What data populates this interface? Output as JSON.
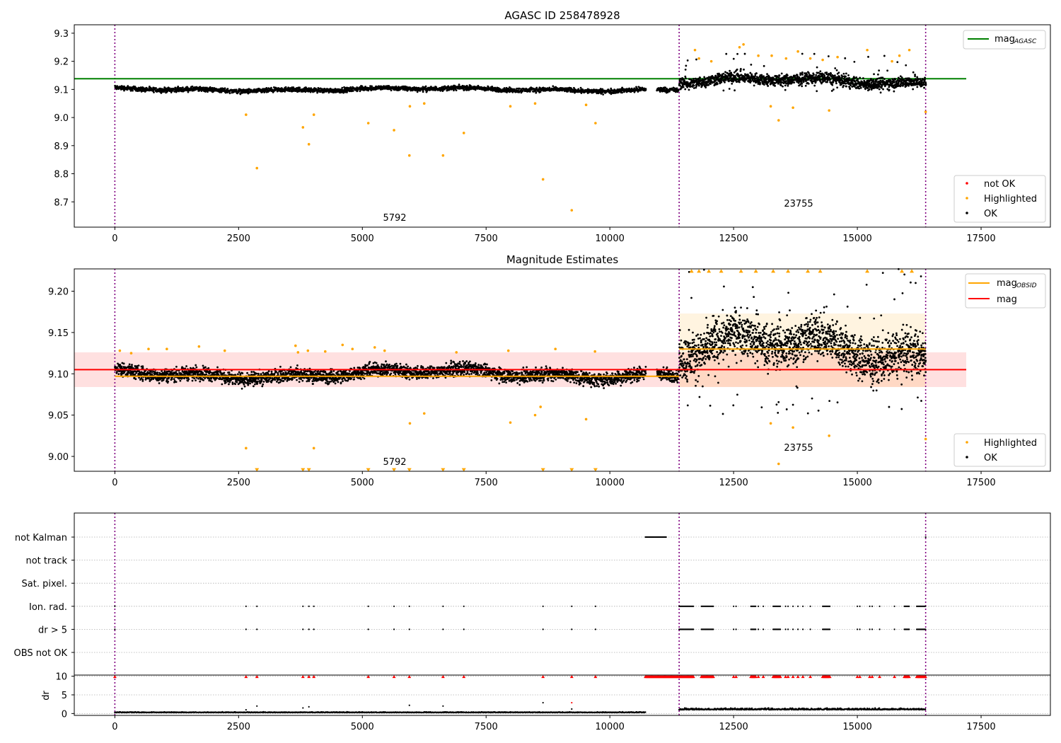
{
  "chart_data": [
    {
      "type": "scatter",
      "title": "AGASC ID 258478928",
      "xlabel": "",
      "ylabel": "",
      "xlim": [
        -820,
        18900
      ],
      "ylim": [
        8.61,
        9.33
      ],
      "xticks": [
        0,
        2500,
        5000,
        7500,
        10000,
        12500,
        15000,
        17500
      ],
      "xtick_labels": [
        "0",
        "2500",
        "5000",
        "7500",
        "10000",
        "12500",
        "15000",
        "17500"
      ],
      "yticks": [
        8.7,
        8.8,
        8.9,
        9.0,
        9.1,
        9.2,
        9.3
      ],
      "ytick_labels": [
        "8.7",
        "8.8",
        "8.9",
        "9.0",
        "9.1",
        "9.2",
        "9.3"
      ],
      "grid": false,
      "legend_position": "upper-right and lower-right",
      "vlines": [
        0,
        11400,
        16380
      ],
      "obsid_labels": [
        {
          "text": "5792",
          "x": 5700,
          "y": 8.655
        },
        {
          "text": "23755",
          "x": 14300,
          "y": 8.685
        }
      ],
      "hlines": [
        {
          "name": "mag_AGASC",
          "legend_main": "mag",
          "legend_sub": "AGASC",
          "y": 9.138,
          "x": [
            -820,
            17200
          ],
          "color": "#008000"
        }
      ],
      "bands": [
        {
          "name": "obs-1 OK",
          "x_start": 0,
          "x_end": 10720,
          "center": 9.1,
          "spread": 0.012,
          "color": "#000000"
        },
        {
          "name": "obs-1 OK gap fill",
          "x_start": 10950,
          "x_end": 11390,
          "center": 9.1,
          "spread": 0.012,
          "color": "#000000"
        },
        {
          "name": "obs-2 OK",
          "x_start": 11400,
          "x_end": 16380,
          "center": 9.128,
          "spread": 0.03,
          "color": "#000000"
        }
      ],
      "series": [
        {
          "name": "not OK",
          "color": "#ff0000",
          "points": []
        },
        {
          "name": "Highlighted",
          "color": "#ffa500",
          "points": [
            [
              2650,
              9.01
            ],
            [
              2870,
              8.82
            ],
            [
              3800,
              8.965
            ],
            [
              3920,
              8.905
            ],
            [
              4020,
              9.01
            ],
            [
              5120,
              8.98
            ],
            [
              5640,
              8.955
            ],
            [
              5950,
              8.865
            ],
            [
              5960,
              9.04
            ],
            [
              6250,
              9.05
            ],
            [
              6630,
              8.865
            ],
            [
              7050,
              8.945
            ],
            [
              7990,
              9.04
            ],
            [
              8490,
              9.05
            ],
            [
              8650,
              8.78
            ],
            [
              9230,
              8.67
            ],
            [
              9520,
              9.045
            ],
            [
              9710,
              8.98
            ],
            [
              13250,
              9.04
            ],
            [
              13410,
              8.99
            ],
            [
              13700,
              9.035
            ],
            [
              14430,
              9.025
            ],
            [
              16380,
              9.02
            ],
            [
              11720,
              9.24
            ],
            [
              11800,
              9.21
            ],
            [
              12050,
              9.2
            ],
            [
              12620,
              9.25
            ],
            [
              12700,
              9.26
            ],
            [
              13000,
              9.22
            ],
            [
              13270,
              9.22
            ],
            [
              13560,
              9.21
            ],
            [
              13800,
              9.235
            ],
            [
              14050,
              9.21
            ],
            [
              14300,
              9.205
            ],
            [
              14600,
              9.215
            ],
            [
              15200,
              9.24
            ],
            [
              15700,
              9.2
            ],
            [
              15850,
              9.22
            ],
            [
              16050,
              9.24
            ]
          ]
        },
        {
          "name": "OK",
          "color": "#000000",
          "points": []
        }
      ],
      "legends": [
        {
          "position": "upper-right",
          "entries": [
            {
              "label_main": "mag",
              "label_sub": "AGASC",
              "kind": "line",
              "color": "#008000"
            }
          ]
        },
        {
          "position": "lower-right",
          "entries": [
            {
              "label": "not OK",
              "kind": "marker",
              "color": "#ff0000"
            },
            {
              "label": "Highlighted",
              "kind": "marker",
              "color": "#ffa500"
            },
            {
              "label": "OK",
              "kind": "marker",
              "color": "#000000"
            }
          ]
        }
      ]
    },
    {
      "type": "scatter",
      "title": "Magnitude Estimates",
      "xlabel": "",
      "ylabel": "",
      "xlim": [
        -820,
        18900
      ],
      "ylim": [
        8.982,
        9.227
      ],
      "xticks": [
        0,
        2500,
        5000,
        7500,
        10000,
        12500,
        15000,
        17500
      ],
      "xtick_labels": [
        "0",
        "2500",
        "5000",
        "7500",
        "10000",
        "12500",
        "15000",
        "17500"
      ],
      "yticks": [
        9.0,
        9.05,
        9.1,
        9.15,
        9.2
      ],
      "ytick_labels": [
        "9.00",
        "9.05",
        "9.10",
        "9.15",
        "9.20"
      ],
      "grid": false,
      "vlines": [
        0,
        11400,
        16380
      ],
      "obsid_labels": [
        {
          "text": "5792",
          "x": 5700,
          "y": 8.9935
        },
        {
          "text": "23755",
          "x": 14300,
          "y": 9.0105
        }
      ],
      "shaded_regions": [
        {
          "name": "mag band",
          "x": [
            -820,
            17200
          ],
          "y": [
            9.084,
            9.126
          ],
          "color": "#ff0000",
          "opacity": 0.12
        },
        {
          "name": "obs-2 band",
          "x": [
            11400,
            16380
          ],
          "y": [
            9.084,
            9.173
          ],
          "color": "#ffa500",
          "opacity": 0.12
        }
      ],
      "hlines": [
        {
          "name": "mag_OBSID obs-1",
          "y": 9.097,
          "x": [
            0,
            11400
          ],
          "color": "#ffa500"
        },
        {
          "name": "mag_OBSID obs-2",
          "y": 9.13,
          "x": [
            11400,
            16380
          ],
          "color": "#ffa500"
        },
        {
          "name": "mag",
          "y": 9.105,
          "x": [
            -820,
            17200
          ],
          "color": "#ff0000"
        }
      ],
      "bands": [
        {
          "name": "obs-1 OK",
          "x_start": 0,
          "x_end": 10720,
          "center": 9.1,
          "spread": 0.012,
          "color": "#000000"
        },
        {
          "name": "obs-1 OK gap fill",
          "x_start": 10950,
          "x_end": 11390,
          "center": 9.1,
          "spread": 0.012,
          "color": "#000000"
        },
        {
          "name": "obs-2 OK",
          "x_start": 11400,
          "x_end": 16380,
          "center": 9.128,
          "spread": 0.04,
          "color": "#000000"
        }
      ],
      "series": [
        {
          "name": "Highlighted",
          "color": "#ffa500",
          "points": [
            [
              2650,
              9.01
            ],
            [
              4020,
              9.01
            ],
            [
              5960,
              9.04
            ],
            [
              6250,
              9.052
            ],
            [
              7990,
              9.041
            ],
            [
              8490,
              9.05
            ],
            [
              8600,
              9.06
            ],
            [
              9520,
              9.045
            ],
            [
              13250,
              9.04
            ],
            [
              13410,
              8.991
            ],
            [
              13700,
              9.035
            ],
            [
              14430,
              9.025
            ],
            [
              16380,
              9.021
            ],
            [
              100,
              9.128
            ],
            [
              330,
              9.125
            ],
            [
              680,
              9.13
            ],
            [
              1050,
              9.13
            ],
            [
              1700,
              9.133
            ],
            [
              2220,
              9.128
            ],
            [
              3650,
              9.134
            ],
            [
              3700,
              9.126
            ],
            [
              3900,
              9.128
            ],
            [
              4250,
              9.127
            ],
            [
              4600,
              9.135
            ],
            [
              4800,
              9.13
            ],
            [
              5250,
              9.132
            ],
            [
              5450,
              9.128
            ],
            [
              6900,
              9.126
            ],
            [
              7950,
              9.128
            ],
            [
              8900,
              9.13
            ],
            [
              9700,
              9.127
            ]
          ]
        },
        {
          "name": "Highlighted (clipped below)",
          "color": "#ffa500",
          "points": [
            [
              2870,
              8.984
            ],
            [
              3800,
              8.984
            ],
            [
              3920,
              8.984
            ],
            [
              5120,
              8.984
            ],
            [
              5640,
              8.984
            ],
            [
              5950,
              8.984
            ],
            [
              6630,
              8.984
            ],
            [
              7050,
              8.984
            ],
            [
              8650,
              8.984
            ],
            [
              9230,
              8.984
            ],
            [
              9710,
              8.984
            ]
          ]
        },
        {
          "name": "Highlighted (clipped above)",
          "color": "#ffa500",
          "points": [
            [
              11650,
              9.225
            ],
            [
              11800,
              9.225
            ],
            [
              12000,
              9.225
            ],
            [
              12250,
              9.225
            ],
            [
              12650,
              9.225
            ],
            [
              12950,
              9.225
            ],
            [
              13300,
              9.225
            ],
            [
              13600,
              9.225
            ],
            [
              14000,
              9.225
            ],
            [
              14250,
              9.225
            ],
            [
              15200,
              9.225
            ],
            [
              15900,
              9.225
            ],
            [
              16100,
              9.225
            ]
          ]
        },
        {
          "name": "OK",
          "color": "#000000",
          "points": []
        }
      ],
      "legends": [
        {
          "position": "upper-right",
          "entries": [
            {
              "label_main": "mag",
              "label_sub": "OBSID",
              "kind": "line",
              "color": "#ffa500"
            },
            {
              "label": "mag",
              "kind": "line",
              "color": "#ff0000"
            }
          ]
        },
        {
          "position": "lower-right",
          "entries": [
            {
              "label": "Highlighted",
              "kind": "marker",
              "color": "#ffa500"
            },
            {
              "label": "OK",
              "kind": "marker",
              "color": "#000000"
            }
          ]
        }
      ]
    },
    {
      "type": "scatter",
      "title": "",
      "xlabel": "",
      "ylabel": "",
      "xlim": [
        -820,
        18900
      ],
      "categories": [
        "not Kalman",
        "not track",
        "Sat. pixel.",
        "Ion. rad.",
        "dr > 5",
        "OBS not OK"
      ],
      "grid": "horizontal dotted",
      "vlines": [
        0,
        11400,
        16380
      ],
      "flags": [
        {
          "category": "not Kalman",
          "ranges": [
            [
              10720,
              11150
            ]
          ],
          "points": [
            16380
          ]
        },
        {
          "category": "not track",
          "ranges": [],
          "points": []
        },
        {
          "category": "Sat. pixel.",
          "ranges": [],
          "points": []
        },
        {
          "category": "Ion. rad.",
          "ranges": [
            [
              11400,
              11700
            ],
            [
              11850,
              12100
            ],
            [
              12850,
              12950
            ],
            [
              13300,
              13450
            ],
            [
              14300,
              14450
            ],
            [
              15950,
              16050
            ],
            [
              16200,
              16380
            ]
          ],
          "points": [
            0,
            2650,
            2870,
            3800,
            3920,
            4020,
            5120,
            5640,
            5950,
            6630,
            7050,
            8650,
            9230,
            9710,
            12500,
            12550,
            13000,
            13100,
            13550,
            13600,
            13700,
            13800,
            13900,
            14050,
            15000,
            15050,
            15250,
            15300,
            15450,
            15750
          ]
        },
        {
          "category": "dr > 5",
          "ranges": [
            [
              11400,
              11700
            ],
            [
              11850,
              12100
            ],
            [
              12850,
              12950
            ],
            [
              13300,
              13450
            ],
            [
              14300,
              14450
            ],
            [
              15950,
              16050
            ],
            [
              16200,
              16380
            ]
          ],
          "points": [
            0,
            2650,
            2870,
            3800,
            3920,
            4020,
            5120,
            5640,
            5950,
            6630,
            7050,
            8650,
            9230,
            9710,
            12500,
            12550,
            13000,
            13100,
            13550,
            13600,
            13700,
            13800,
            13900,
            14050,
            15000,
            15050,
            15250,
            15300,
            15450,
            15750
          ]
        },
        {
          "category": "OBS not OK",
          "ranges": [],
          "points": []
        }
      ]
    },
    {
      "type": "scatter",
      "title": "",
      "xlabel": "",
      "ylabel": "dr",
      "xlim": [
        -820,
        18900
      ],
      "ylim": [
        -0.5,
        10.3
      ],
      "yticks": [
        0,
        5,
        10
      ],
      "ytick_labels": [
        "0",
        "5",
        "10"
      ],
      "xticks": [
        0,
        2500,
        5000,
        7500,
        10000,
        12500,
        15000,
        17500
      ],
      "xtick_labels": [
        "0",
        "2500",
        "5000",
        "7500",
        "10000",
        "12500",
        "15000",
        "17500"
      ],
      "grid": "horizontal dotted",
      "vlines": [
        0,
        11400,
        16380
      ],
      "clipped_red_markers": {
        "y": 9.9,
        "ranges": [
          [
            10720,
            11390
          ],
          [
            11400,
            11700
          ],
          [
            11850,
            12100
          ],
          [
            12850,
            12950
          ],
          [
            13300,
            13450
          ],
          [
            14300,
            14450
          ],
          [
            15950,
            16050
          ],
          [
            16200,
            16380
          ]
        ],
        "points": [
          0,
          2650,
          2870,
          3800,
          3920,
          4020,
          5120,
          5640,
          5950,
          6630,
          7050,
          8650,
          9230,
          9710,
          12500,
          12550,
          13000,
          13100,
          13550,
          13600,
          13700,
          13800,
          13900,
          14050,
          15000,
          15050,
          15250,
          15300,
          15450,
          15750
        ]
      },
      "bands": [
        {
          "name": "obs-1 dr",
          "x_start": 0,
          "x_end": 10720,
          "center": 0.25,
          "spread": 0.25,
          "color": "#000000"
        },
        {
          "name": "obs-2 dr",
          "x_start": 11400,
          "x_end": 16380,
          "center": 1.0,
          "spread": 0.6,
          "color": "#000000"
        }
      ],
      "series": [
        {
          "name": "dr outliers",
          "color": "#000000",
          "points": [
            [
              2650,
              1.0
            ],
            [
              2870,
              2.0
            ],
            [
              3800,
              1.5
            ],
            [
              3920,
              1.8
            ],
            [
              5950,
              2.2
            ],
            [
              6630,
              2.0
            ],
            [
              8650,
              2.9
            ],
            [
              9230,
              1.2
            ]
          ]
        },
        {
          "name": "dr red",
          "color": "#ff0000",
          "points": [
            [
              9230,
              2.9
            ]
          ]
        }
      ]
    }
  ]
}
